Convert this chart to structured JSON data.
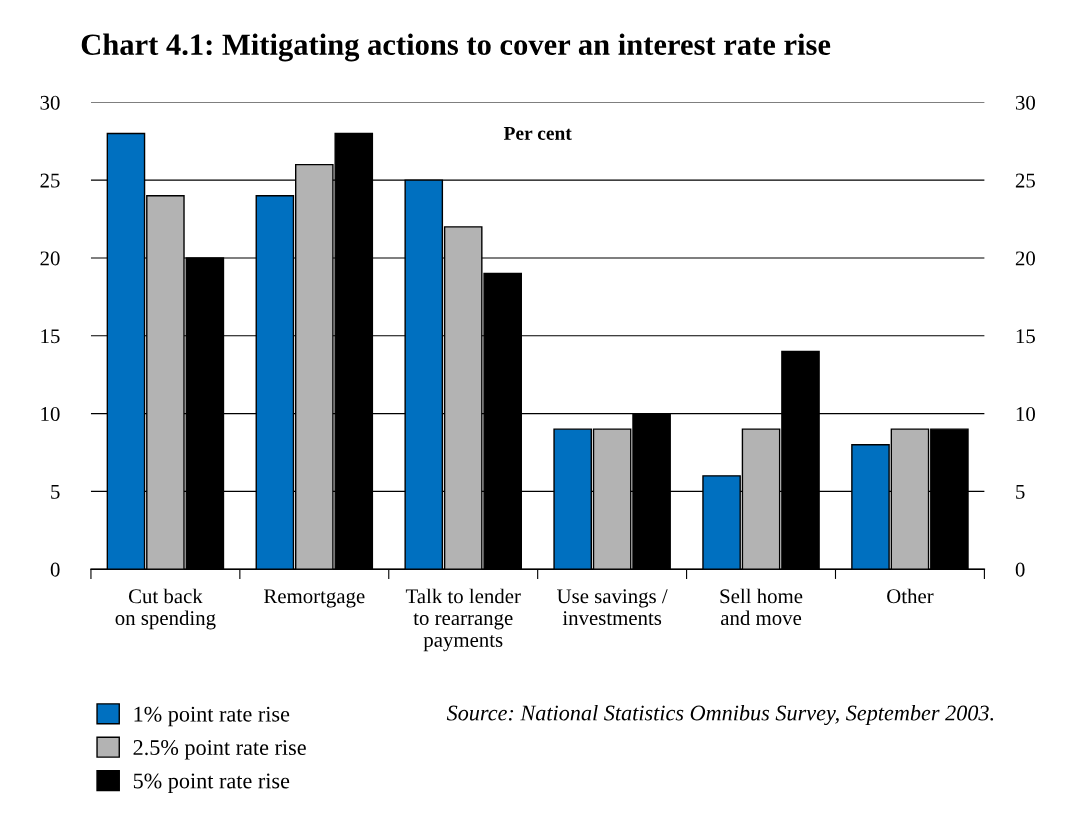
{
  "chart_data": {
    "type": "bar",
    "title": "Chart 4.1: Mitigating actions to cover an interest rate rise",
    "categories": [
      "Cut back\non spending",
      "Remortgage",
      "Talk to lender\nto rearrange\npayments",
      "Use savings /\ninvestments",
      "Sell home\nand move",
      "Other"
    ],
    "series": [
      {
        "name": "1% point rate rise",
        "color": "#0070c0",
        "values": [
          28,
          24,
          25,
          9,
          6,
          8
        ]
      },
      {
        "name": "2.5% point rate rise",
        "color": "#b3b3b3",
        "values": [
          24,
          26,
          22,
          9,
          9,
          9
        ]
      },
      {
        "name": "5% point rate rise",
        "color": "#000000",
        "values": [
          20,
          28,
          19,
          10,
          14,
          9
        ]
      }
    ],
    "ylim": [
      0,
      30
    ],
    "yticks": [
      0,
      5,
      10,
      15,
      20,
      25,
      30
    ],
    "y2lim": [
      0,
      30
    ],
    "y2ticks": [
      0,
      5,
      10,
      15,
      20,
      25,
      30
    ],
    "grid": "y",
    "legend": "bottom left",
    "annotations": [
      "Per cent",
      "Source: National Statistics Omnibus Survey, September 2003."
    ]
  }
}
